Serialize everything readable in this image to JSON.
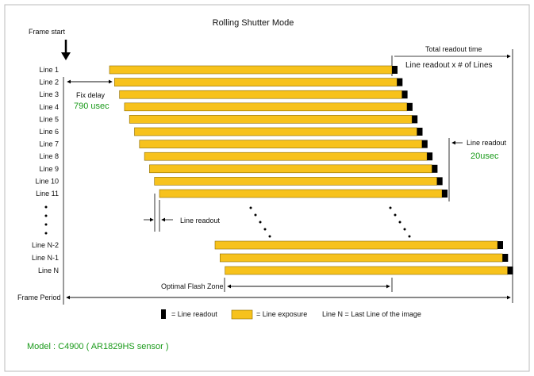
{
  "title": "Rolling Shutter Mode",
  "frame_start": "Frame start",
  "total_readout_time": "Total readout time",
  "total_readout_formula": "Line readout  x # of Lines",
  "fix_delay_label": "Fix delay",
  "fix_delay_value": "790 usec",
  "line_readout_label": "Line readout",
  "line_readout_value": "20usec",
  "line_readout_bottom_label": "Line readout",
  "optimal_flash_zone": "Optimal Flash Zone",
  "frame_period": "Frame Period",
  "legend": {
    "readout": "= Line readout",
    "exposure": "= Line exposure",
    "last_line": "Line N  = Last Line of the image"
  },
  "model": "Model : C4900  ( AR1829HS sensor )",
  "lines_top": [
    "Line 1",
    "Line 2",
    "Line 3",
    "Line 4",
    "Line 5",
    "Line 6",
    "Line 7",
    "Line 8",
    "Line 9",
    "Line 10",
    "Line 11"
  ],
  "lines_bottom": [
    "Line N-2",
    "Line N-1",
    "Line N"
  ],
  "colors": {
    "exposure": "#f7c21c",
    "exposure_border": "#8a6a00",
    "readout": "#000000",
    "accent_text": "#1a9a1a",
    "frame_border": "#bbbbbb"
  }
}
